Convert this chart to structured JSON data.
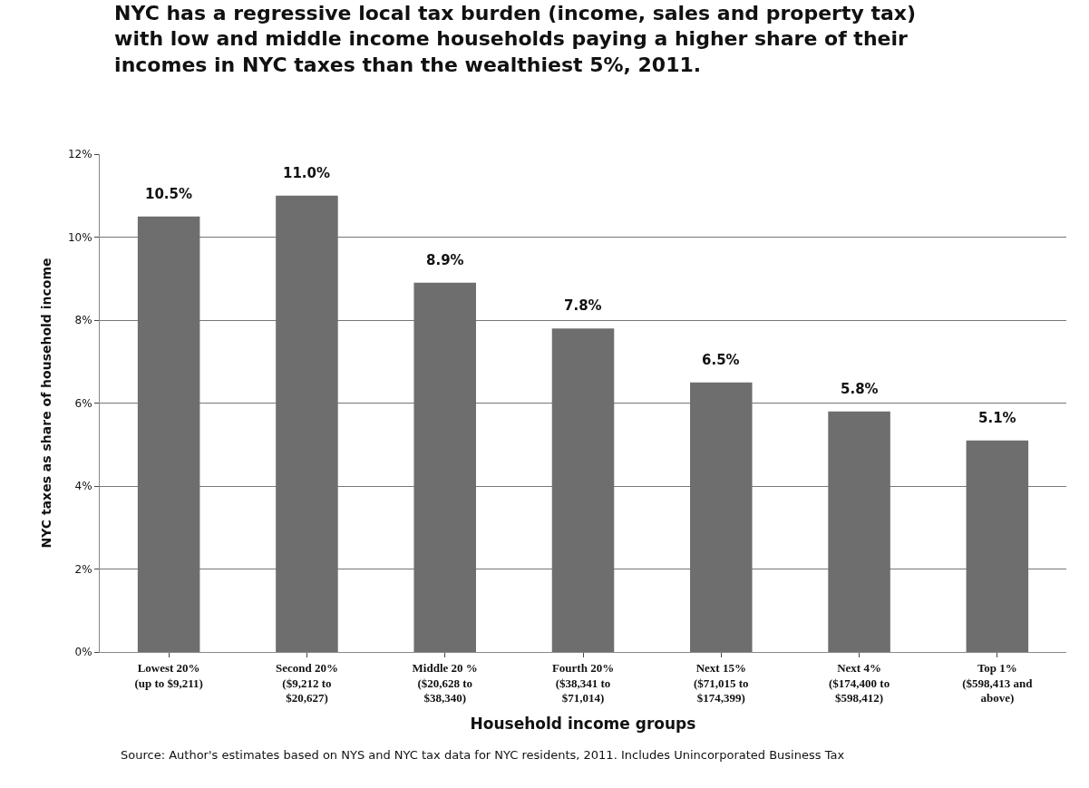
{
  "chart_data": {
    "type": "bar",
    "title": "NYC has a regressive local tax burden (income, sales and property tax)\nwith low and middle income households paying a higher share of their\nincomes in NYC taxes than the wealthiest 5%, 2011.",
    "xlabel": "Household income groups",
    "ylabel": "NYC taxes as share of household income",
    "annotations": [
      "Source: Author's estimates based on NYS and NYC tax data for NYC residents, 2011. Includes Unincorporated Business Tax"
    ],
    "categories": [
      "Lowest 20%\n(up to $9,211)",
      "Second 20%\n($9,212 to\n$20,627)",
      "Middle 20 %\n($20,628 to\n$38,340)",
      "Fourth 20%\n($38,341 to\n$71,014)",
      "Next 15%\n($71,015 to\n$174,399)",
      "Next 4%\n($174,400 to\n$598,412)",
      "Top 1%\n($598,413 and\nabove)"
    ],
    "values": [
      10.5,
      11.0,
      8.9,
      7.8,
      6.5,
      5.8,
      5.1
    ],
    "value_labels": [
      "10.5%",
      "11.0%",
      "8.9%",
      "7.8%",
      "6.5%",
      "5.8%",
      "5.1%"
    ],
    "color": "#6e6e6e",
    "ylim": [
      0,
      12
    ],
    "yticks": [
      {
        "value": 0,
        "label": "0%"
      },
      {
        "value": 2,
        "label": "2%"
      },
      {
        "value": 4,
        "label": "4%"
      },
      {
        "value": 6,
        "label": "6%"
      },
      {
        "value": 8,
        "label": "8%"
      },
      {
        "value": 10,
        "label": "10%"
      },
      {
        "value": 12,
        "label": "12%"
      }
    ],
    "grid": "y"
  }
}
